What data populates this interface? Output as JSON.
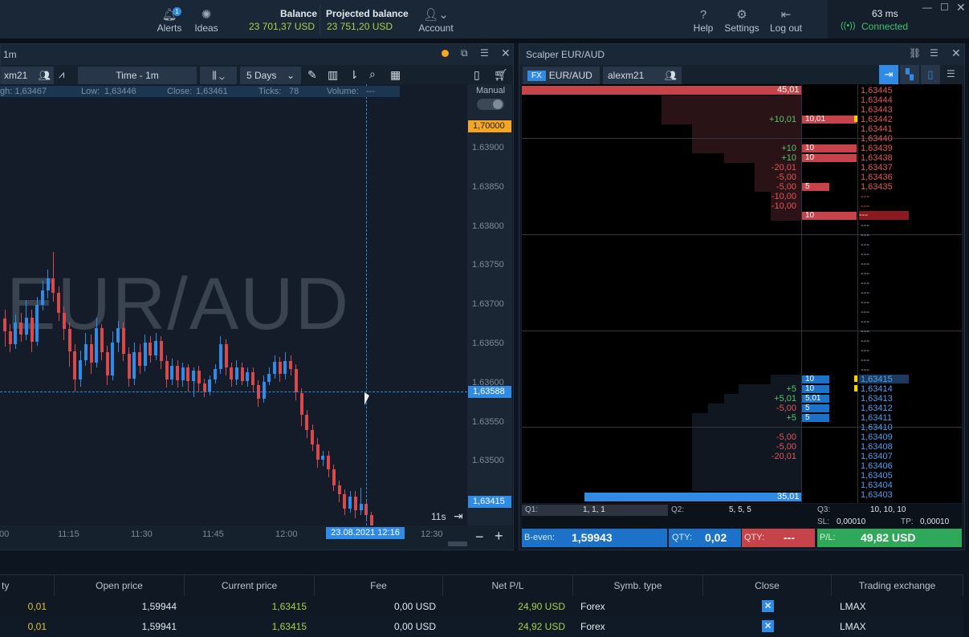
{
  "topbar": {
    "alerts_label": "Alerts",
    "alerts_badge": "1",
    "ideas_label": "Ideas",
    "balance_label": "Balance",
    "balance_value": "23 701,37 USD",
    "projected_label": "Projected balance",
    "projected_value": "23 751,20 USD",
    "account_label": "Account",
    "help_label": "Help",
    "settings_label": "Settings",
    "logout_label": "Log out",
    "latency": "63 ms",
    "connection_status": "Connected",
    "colors": {
      "accent_green": "#a7d34a",
      "status_green": "#3ec46d"
    }
  },
  "chart": {
    "title": "1m",
    "account_short": "xm21",
    "timeframe": "Time - 1m",
    "range": "5 Days",
    "ohlc": {
      "high": "gh: 1,63467",
      "low_label": "Low:",
      "low": "1,63446",
      "close_label": "Close:",
      "close": "1,63461",
      "ticks_label": "Ticks:",
      "ticks": "78",
      "volume_label": "Volume:",
      "volume": "---"
    },
    "manual_label": "Manual",
    "watermark": "EUR/AUD",
    "price_marker_top": "1,70000",
    "price_marker_cross": "1,63588",
    "price_marker_current": "1,63415",
    "timer": "11s",
    "date_marker": "23.08.2021 12:16",
    "y_ticks": [
      "1.63900",
      "1.63850",
      "1.63800",
      "1.63750",
      "1.63700",
      "1.63650",
      "1.63600",
      "1.63550",
      "1.63500",
      "1.63450"
    ],
    "x_ticks": [
      "00",
      "11:15",
      "11:30",
      "11:45",
      "12:00",
      "12:30"
    ],
    "colors": {
      "up": "#2f8be5",
      "down": "#d9484b"
    }
  },
  "chart_data": {
    "type": "candlestick",
    "x_unit": "minutes from 11:00",
    "ylim": [
      1.63415,
      1.6393
    ],
    "candles": [
      {
        "x": 0,
        "o": 1.63683,
        "c": 1.63666,
        "h": 1.63694,
        "l": 1.63647
      },
      {
        "x": 1,
        "o": 1.63666,
        "c": 1.6365,
        "h": 1.63676,
        "l": 1.6364
      },
      {
        "x": 2,
        "o": 1.6365,
        "c": 1.63678,
        "h": 1.63688,
        "l": 1.63644
      },
      {
        "x": 3,
        "o": 1.63678,
        "c": 1.63662,
        "h": 1.6369,
        "l": 1.63653
      },
      {
        "x": 4,
        "o": 1.63662,
        "c": 1.63684,
        "h": 1.63706,
        "l": 1.63655
      },
      {
        "x": 5,
        "o": 1.63684,
        "c": 1.63653,
        "h": 1.63694,
        "l": 1.6364
      },
      {
        "x": 6,
        "o": 1.63653,
        "c": 1.637,
        "h": 1.6371,
        "l": 1.63648
      },
      {
        "x": 7,
        "o": 1.637,
        "c": 1.63719,
        "h": 1.63731,
        "l": 1.63693
      },
      {
        "x": 8,
        "o": 1.63719,
        "c": 1.63734,
        "h": 1.63745,
        "l": 1.63708
      },
      {
        "x": 9,
        "o": 1.63734,
        "c": 1.63716,
        "h": 1.63768,
        "l": 1.63704
      },
      {
        "x": 10,
        "o": 1.63716,
        "c": 1.6369,
        "h": 1.63724,
        "l": 1.6368
      },
      {
        "x": 11,
        "o": 1.6369,
        "c": 1.63669,
        "h": 1.63698,
        "l": 1.63655
      },
      {
        "x": 12,
        "o": 1.63669,
        "c": 1.63641,
        "h": 1.63678,
        "l": 1.63621
      },
      {
        "x": 13,
        "o": 1.63641,
        "c": 1.63605,
        "h": 1.6365,
        "l": 1.6359
      },
      {
        "x": 14,
        "o": 1.63605,
        "c": 1.6363,
        "h": 1.63642,
        "l": 1.63596
      },
      {
        "x": 15,
        "o": 1.6363,
        "c": 1.6365,
        "h": 1.63664,
        "l": 1.63622
      },
      {
        "x": 16,
        "o": 1.6365,
        "c": 1.63626,
        "h": 1.63662,
        "l": 1.63612
      },
      {
        "x": 17,
        "o": 1.63626,
        "c": 1.6367,
        "h": 1.63684,
        "l": 1.6362
      },
      {
        "x": 18,
        "o": 1.6367,
        "c": 1.6364,
        "h": 1.63676,
        "l": 1.6363
      },
      {
        "x": 19,
        "o": 1.6364,
        "c": 1.6361,
        "h": 1.63648,
        "l": 1.63598
      },
      {
        "x": 20,
        "o": 1.6361,
        "c": 1.63652,
        "h": 1.63666,
        "l": 1.63604
      },
      {
        "x": 21,
        "o": 1.63652,
        "c": 1.6367,
        "h": 1.6368,
        "l": 1.6364
      },
      {
        "x": 22,
        "o": 1.6367,
        "c": 1.63638,
        "h": 1.63678,
        "l": 1.63628
      },
      {
        "x": 23,
        "o": 1.63638,
        "c": 1.63606,
        "h": 1.63646,
        "l": 1.63596
      },
      {
        "x": 24,
        "o": 1.63606,
        "c": 1.6364,
        "h": 1.63652,
        "l": 1.63598
      },
      {
        "x": 25,
        "o": 1.6364,
        "c": 1.63622,
        "h": 1.6365,
        "l": 1.63612
      },
      {
        "x": 26,
        "o": 1.63622,
        "c": 1.63652,
        "h": 1.63662,
        "l": 1.63615
      },
      {
        "x": 27,
        "o": 1.63652,
        "c": 1.63636,
        "h": 1.6366,
        "l": 1.63626
      },
      {
        "x": 28,
        "o": 1.63636,
        "c": 1.63654,
        "h": 1.63664,
        "l": 1.6363
      },
      {
        "x": 29,
        "o": 1.63654,
        "c": 1.63628,
        "h": 1.6366,
        "l": 1.63618
      },
      {
        "x": 30,
        "o": 1.63628,
        "c": 1.63605,
        "h": 1.63636,
        "l": 1.63595
      },
      {
        "x": 31,
        "o": 1.63605,
        "c": 1.63622,
        "h": 1.63632,
        "l": 1.63598
      },
      {
        "x": 32,
        "o": 1.63622,
        "c": 1.63604,
        "h": 1.6363,
        "l": 1.63595
      },
      {
        "x": 33,
        "o": 1.63604,
        "c": 1.6362,
        "h": 1.63626,
        "l": 1.63596
      },
      {
        "x": 34,
        "o": 1.6362,
        "c": 1.63603,
        "h": 1.63624,
        "l": 1.6359
      },
      {
        "x": 35,
        "o": 1.63603,
        "c": 1.63616,
        "h": 1.6362,
        "l": 1.63582
      },
      {
        "x": 36,
        "o": 1.63616,
        "c": 1.636,
        "h": 1.63622,
        "l": 1.6359
      },
      {
        "x": 37,
        "o": 1.636,
        "c": 1.6359,
        "h": 1.63606,
        "l": 1.63582
      },
      {
        "x": 38,
        "o": 1.6359,
        "c": 1.63605,
        "h": 1.6361,
        "l": 1.63584
      },
      {
        "x": 39,
        "o": 1.63605,
        "c": 1.63618,
        "h": 1.63624,
        "l": 1.636
      },
      {
        "x": 40,
        "o": 1.63618,
        "c": 1.6365,
        "h": 1.6366,
        "l": 1.63612
      },
      {
        "x": 41,
        "o": 1.6365,
        "c": 1.6362,
        "h": 1.63656,
        "l": 1.6361
      },
      {
        "x": 42,
        "o": 1.6362,
        "c": 1.63605,
        "h": 1.63626,
        "l": 1.63596
      },
      {
        "x": 43,
        "o": 1.63605,
        "c": 1.6362,
        "h": 1.6363,
        "l": 1.63598
      },
      {
        "x": 44,
        "o": 1.6362,
        "c": 1.63603,
        "h": 1.63626,
        "l": 1.63598
      },
      {
        "x": 45,
        "o": 1.63603,
        "c": 1.63614,
        "h": 1.6362,
        "l": 1.63596
      },
      {
        "x": 46,
        "o": 1.63614,
        "c": 1.63598,
        "h": 1.6362,
        "l": 1.6359
      },
      {
        "x": 47,
        "o": 1.63598,
        "c": 1.6358,
        "h": 1.63604,
        "l": 1.6357
      },
      {
        "x": 48,
        "o": 1.6358,
        "c": 1.63602,
        "h": 1.6361,
        "l": 1.63575
      },
      {
        "x": 49,
        "o": 1.63602,
        "c": 1.63612,
        "h": 1.6362,
        "l": 1.63598
      },
      {
        "x": 50,
        "o": 1.63612,
        "c": 1.63627,
        "h": 1.63636,
        "l": 1.63606
      },
      {
        "x": 51,
        "o": 1.63627,
        "c": 1.63612,
        "h": 1.63634,
        "l": 1.63602
      },
      {
        "x": 52,
        "o": 1.63612,
        "c": 1.63628,
        "h": 1.6364,
        "l": 1.63605
      },
      {
        "x": 53,
        "o": 1.63628,
        "c": 1.63618,
        "h": 1.63636,
        "l": 1.6361
      },
      {
        "x": 54,
        "o": 1.63618,
        "c": 1.63588,
        "h": 1.63624,
        "l": 1.63578
      },
      {
        "x": 55,
        "o": 1.63588,
        "c": 1.6356,
        "h": 1.63594,
        "l": 1.63545
      },
      {
        "x": 56,
        "o": 1.6356,
        "c": 1.6354,
        "h": 1.63566,
        "l": 1.6353
      },
      {
        "x": 57,
        "o": 1.6354,
        "c": 1.63522,
        "h": 1.63548,
        "l": 1.63514
      },
      {
        "x": 58,
        "o": 1.63522,
        "c": 1.63502,
        "h": 1.6353,
        "l": 1.63492
      },
      {
        "x": 59,
        "o": 1.63502,
        "c": 1.63508,
        "h": 1.63514,
        "l": 1.63494
      },
      {
        "x": 60,
        "o": 1.63508,
        "c": 1.6349,
        "h": 1.63514,
        "l": 1.6348
      },
      {
        "x": 61,
        "o": 1.6349,
        "c": 1.6347,
        "h": 1.63496,
        "l": 1.63462
      },
      {
        "x": 62,
        "o": 1.6347,
        "c": 1.63458,
        "h": 1.63476,
        "l": 1.63448
      },
      {
        "x": 63,
        "o": 1.63458,
        "c": 1.6344,
        "h": 1.63465,
        "l": 1.63432
      },
      {
        "x": 64,
        "o": 1.6344,
        "c": 1.63455,
        "h": 1.63462,
        "l": 1.63435
      },
      {
        "x": 65,
        "o": 1.63455,
        "c": 1.63438,
        "h": 1.63462,
        "l": 1.63428
      },
      {
        "x": 66,
        "o": 1.63438,
        "c": 1.63446,
        "h": 1.63467,
        "l": 1.63432
      },
      {
        "x": 67,
        "o": 1.63446,
        "c": 1.63432,
        "h": 1.6345,
        "l": 1.63426
      },
      {
        "x": 68,
        "o": 1.63432,
        "c": 1.63418,
        "h": 1.63436,
        "l": 1.6341
      }
    ]
  },
  "scalper": {
    "title": "Scalper EUR/AUD",
    "fx_badge": "FX",
    "symbol": "EUR/AUD",
    "account": "alexm21",
    "top_volume": "45,01",
    "bottom_volume": "35,01",
    "ask_prices": [
      "1,63445",
      "1,63444",
      "1,63443",
      "1,63442",
      "1,63441",
      "1,63440",
      "1,63439",
      "1,63438",
      "1,63437",
      "1,63436",
      "1,63435",
      "---",
      "---",
      "---"
    ],
    "ask_deltas": [
      "",
      "",
      "",
      "+10,01",
      "",
      "",
      "+10",
      "+10",
      "-20,01",
      "-5,00",
      "-5,00",
      "-10,00",
      "-10,00",
      ""
    ],
    "ask_volumes": [
      "",
      "",
      "",
      "10,01",
      "",
      "",
      "10",
      "10",
      "",
      "",
      "5",
      "",
      "",
      "10"
    ],
    "mid_prices": [
      "---",
      "---",
      "---",
      "---",
      "---",
      "---",
      "---",
      "---",
      "---",
      "---",
      "---",
      "---",
      "---",
      "---",
      "---",
      "---"
    ],
    "bid_prices": [
      "1,63415",
      "1,63414",
      "1,63413",
      "1,63412",
      "1,63411",
      "1,63410",
      "1,63409",
      "1,63408",
      "1,63407",
      "1,63406",
      "1,63405",
      "1,63404",
      "1,63403"
    ],
    "bid_deltas": [
      "",
      "+5",
      "+5,01",
      "-5,00",
      "+5",
      "",
      "-5,00",
      "-5,00",
      "-20,01",
      "",
      "",
      "",
      ""
    ],
    "bid_volumes": [
      "10",
      "10",
      "5,01",
      "5",
      "5",
      "",
      "",
      "",
      "",
      "",
      "",
      "",
      ""
    ],
    "q1_label": "Q1:",
    "q1_value": "1, 1, 1",
    "q2_label": "Q2:",
    "q2_value": "5, 5, 5",
    "q3_label": "Q3:",
    "q3_value": "10, 10, 10",
    "sl_label": "SL:",
    "sl_value": "0,00010",
    "tp_label": "TP:",
    "tp_value": "0,00010",
    "beven_label": "B-even:",
    "beven_value": "1,59943",
    "qty_label": "QTY:",
    "qty_value": "0,02",
    "qty2_label": "QTY:",
    "qty2_value": "---",
    "pl_label": "P/L:",
    "pl_value": "49,82 USD"
  },
  "blotter": {
    "headers": [
      "ty",
      "Open price",
      "Current price",
      "Fee",
      "Net P/L",
      "Symb. type",
      "Close",
      "Trading exchange"
    ],
    "rows": [
      {
        "qty": "0,01",
        "open": "1,59944",
        "current": "1,63415",
        "fee": "0,00 USD",
        "pl": "24,90 USD",
        "type": "Forex",
        "close": "✕",
        "exchange": "LMAX"
      },
      {
        "qty": "0,01",
        "open": "1,59941",
        "current": "1,63415",
        "fee": "0,00 USD",
        "pl": "24,92 USD",
        "type": "Forex",
        "close": "✕",
        "exchange": "LMAX"
      }
    ]
  }
}
